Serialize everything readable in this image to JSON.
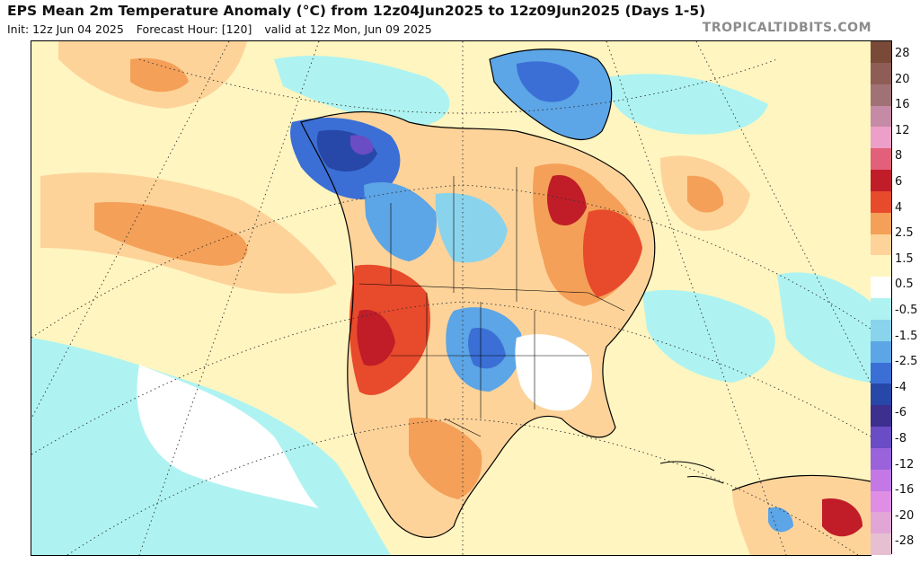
{
  "header": {
    "title": "EPS Mean 2m Temperature Anomaly (°C) from 12z04Jun2025 to 12z09Jun2025 (Days 1-5)",
    "init": "Init: 12z Jun 04 2025",
    "forecast_hour": "Forecast Hour: [120]",
    "valid": "valid at 12z Mon, Jun 09 2025",
    "credit": "TROPICALTIDBITS.COM"
  },
  "colorbar": {
    "labels": [
      "28",
      "20",
      "16",
      "12",
      "8",
      "6",
      "4",
      "2.5",
      "1.5",
      "0.5",
      "-0.5",
      "-1.5",
      "-2.5",
      "-4",
      "-6",
      "-8",
      "-12",
      "-16",
      "-20",
      "-28"
    ],
    "colors": [
      "#7a4a38",
      "#8e5e56",
      "#a07276",
      "#c58aa5",
      "#ec9fc8",
      "#e2607a",
      "#c01d29",
      "#e84a2c",
      "#f4a058",
      "#fdd399",
      "#fff5c0",
      "#ffffff",
      "#aef3f1",
      "#8ad3ec",
      "#5ca5e6",
      "#3b6fd6",
      "#2748a8",
      "#3d2f8e",
      "#6a4cc4",
      "#9a63dc",
      "#c378e6",
      "#de8ee4",
      "#e2a6d6",
      "#e6c0d0"
    ]
  },
  "map": {
    "palette": {
      "ocean_cool": "#aef3f1",
      "pale_warm": "#fff5c0",
      "warm": "#fdd399",
      "warmer": "#f4a058",
      "hot": "#e84a2c",
      "very_hot": "#c01d29",
      "cool": "#8ad3ec",
      "cold": "#5ca5e6",
      "colder": "#3b6fd6",
      "very_cold": "#2748a8",
      "extreme_cold": "#6a4cc4",
      "graticule": "#333333",
      "coastline": "#000000"
    }
  }
}
